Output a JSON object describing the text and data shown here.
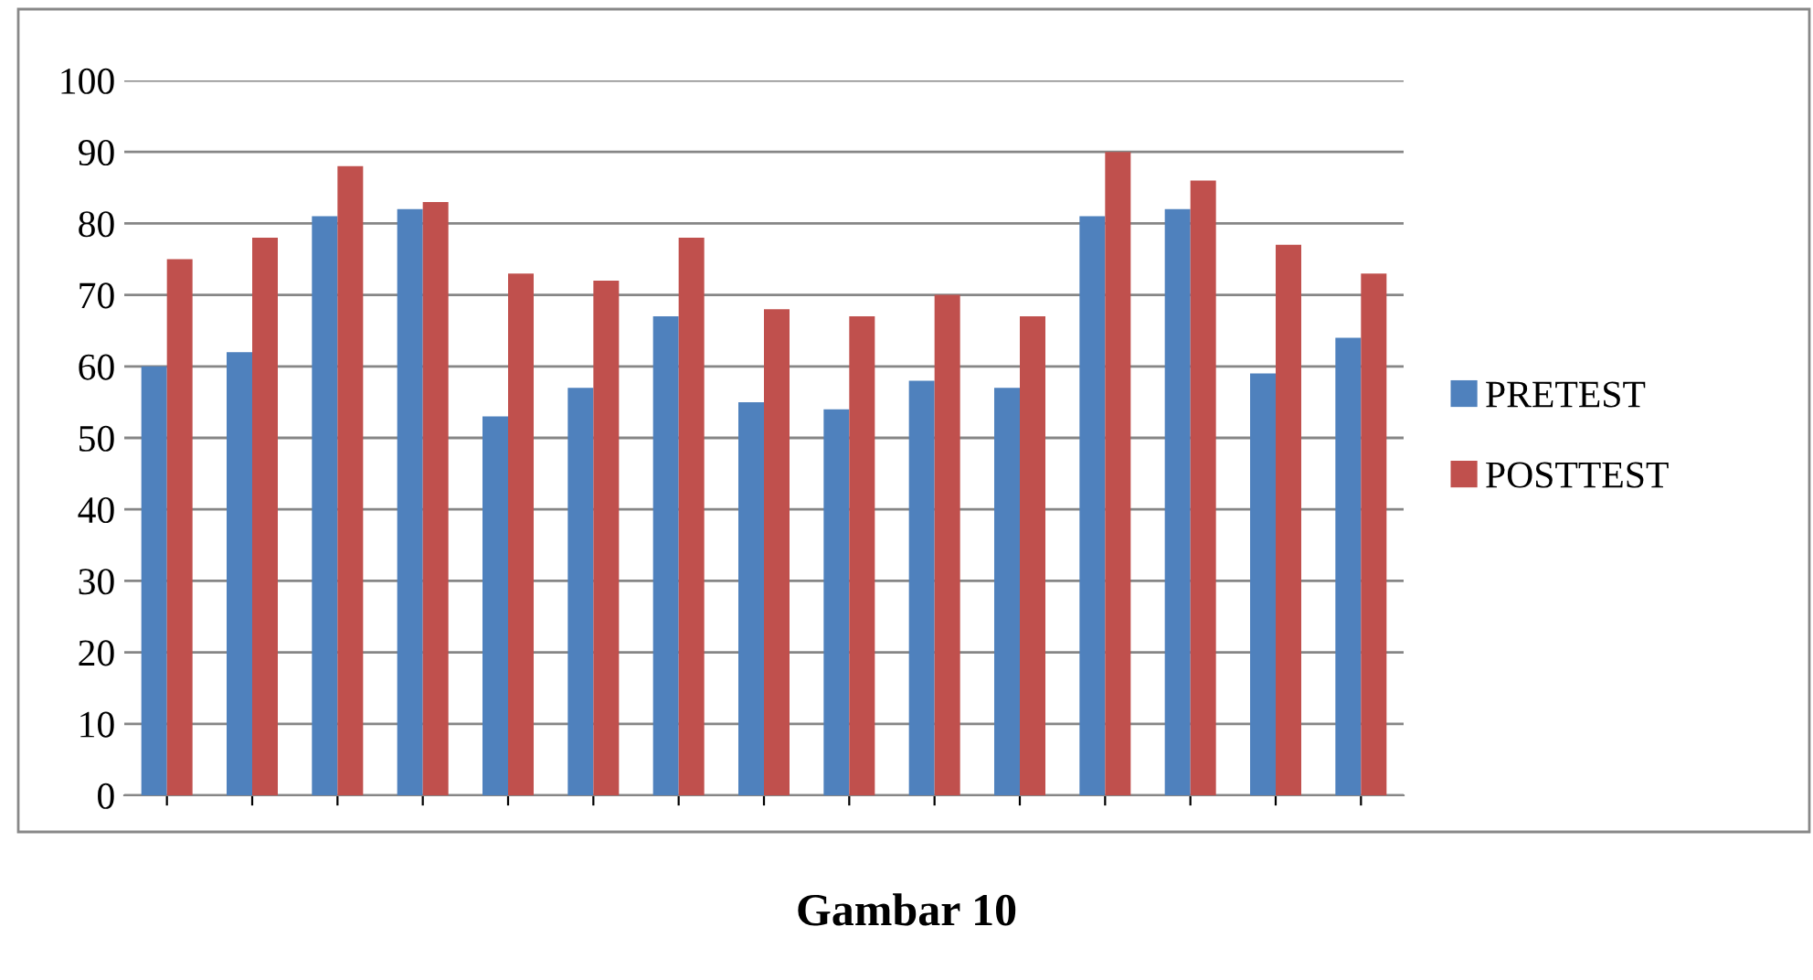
{
  "chart_data": {
    "type": "bar",
    "categories": [
      null,
      null,
      null,
      null,
      null,
      null,
      null,
      null,
      null,
      null,
      null,
      null,
      null,
      null,
      null
    ],
    "series": [
      {
        "name": "PRETEST",
        "color": "#4f81bd",
        "values": [
          60,
          62,
          81,
          82,
          53,
          57,
          67,
          55,
          54,
          58,
          57,
          81,
          82,
          59,
          64
        ]
      },
      {
        "name": "POSTTEST",
        "color": "#c0504d",
        "values": [
          75,
          78,
          88,
          83,
          73,
          72,
          78,
          68,
          67,
          70,
          67,
          90,
          86,
          77,
          73
        ]
      }
    ],
    "ylim": [
      0,
      100
    ],
    "yticks": [
      0,
      10,
      20,
      30,
      40,
      50,
      60,
      70,
      80,
      90,
      100
    ],
    "grid": "y",
    "legend": "right",
    "annotations": [
      "Gambar 10"
    ]
  }
}
